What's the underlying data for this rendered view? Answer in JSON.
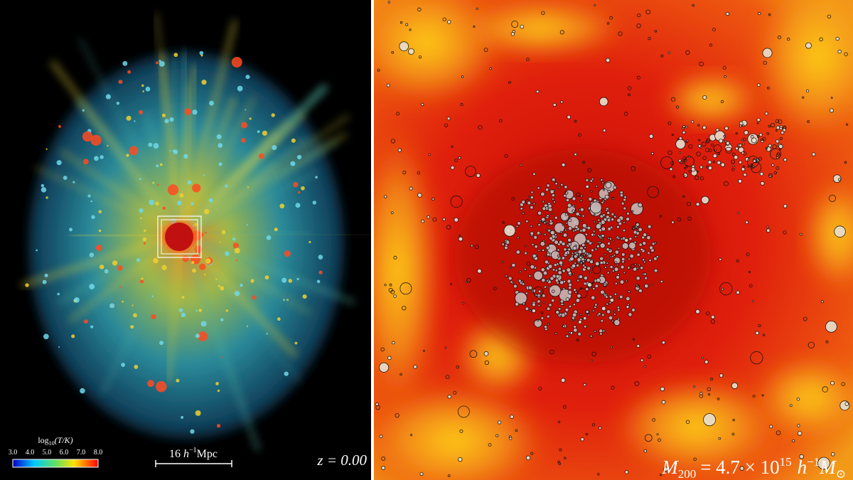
{
  "left_panel": {
    "colorbar": {
      "label": {
        "base": "log",
        "sub": "10",
        "rest": "(T/K)"
      },
      "ticks": [
        "3.0",
        "4.0",
        "5.0",
        "6.0",
        "7.0",
        "8.0"
      ]
    },
    "scale_bar": {
      "length": "16",
      "unit": "h",
      "exp": "−1",
      "suffix": "Mpc"
    },
    "redshift": "z = 0.00"
  },
  "right_panel": {
    "mass_label": {
      "symbol": "M",
      "sub": "200",
      "equals": "= 4.7 × 10",
      "exp": "15",
      "unit": "h",
      "unit_exp": "−1",
      "mass": "M",
      "mass_sub": "⊙"
    }
  }
}
